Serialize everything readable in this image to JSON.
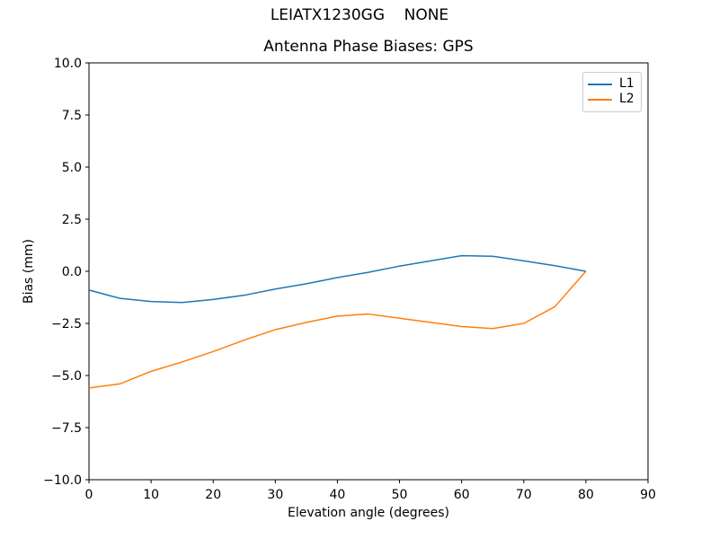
{
  "chart_data": {
    "type": "line",
    "suptitle": "LEIATX1230GG    NONE",
    "title": "Antenna Phase Biases: GPS",
    "xlabel": "Elevation angle (degrees)",
    "ylabel": "Bias (mm)",
    "xlim": [
      0,
      90
    ],
    "ylim": [
      -10,
      10
    ],
    "xticks": [
      0,
      10,
      20,
      30,
      40,
      50,
      60,
      70,
      80,
      90
    ],
    "yticks": [
      -10.0,
      -7.5,
      -5.0,
      -2.5,
      0.0,
      2.5,
      5.0,
      7.5,
      10.0
    ],
    "ytick_labels": [
      "−10.0",
      "−7.5",
      "−5.0",
      "−2.5",
      "0.0",
      "2.5",
      "5.0",
      "7.5",
      "10.0"
    ],
    "grid": false,
    "legend_position": "upper right",
    "x": [
      0,
      5,
      10,
      15,
      20,
      25,
      30,
      35,
      40,
      45,
      50,
      55,
      60,
      65,
      70,
      75,
      80
    ],
    "series": [
      {
        "name": "L1",
        "color": "#1f77b4",
        "values": [
          -0.9,
          -1.3,
          -1.45,
          -1.5,
          -1.35,
          -1.15,
          -0.85,
          -0.6,
          -0.3,
          -0.05,
          0.25,
          0.5,
          0.75,
          0.72,
          0.5,
          0.27,
          0.0
        ]
      },
      {
        "name": "L2",
        "color": "#ff7f0e",
        "values": [
          -5.6,
          -5.4,
          -4.8,
          -4.35,
          -3.85,
          -3.3,
          -2.8,
          -2.45,
          -2.15,
          -2.05,
          -2.25,
          -2.45,
          -2.65,
          -2.75,
          -2.5,
          -1.7,
          0.0
        ]
      }
    ]
  }
}
